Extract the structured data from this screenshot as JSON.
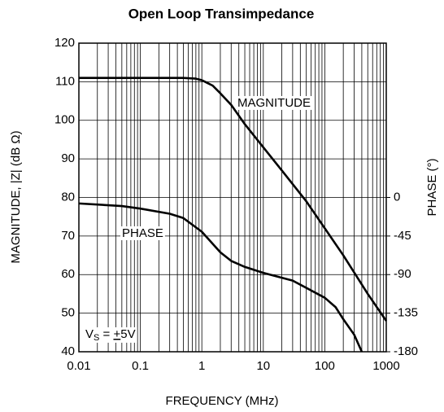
{
  "chart_data": {
    "type": "line",
    "title": "Open Loop Transimpedance",
    "x_label": "FREQUENCY (MHz)",
    "y_label": "MAGNITUDE, |Z| (dB Ω)",
    "y2_label": "PHASE (°)",
    "x_scale": "log",
    "grid": true,
    "xlim": [
      0.01,
      1000
    ],
    "xticks": [
      0.01,
      0.1,
      1,
      10,
      100,
      1000
    ],
    "ylim": [
      40,
      120
    ],
    "yticks": [
      40,
      50,
      60,
      70,
      80,
      90,
      100,
      110,
      120
    ],
    "y2lim": [
      -180,
      180
    ],
    "y2ticks": [
      -180,
      -135,
      -90,
      -45,
      0
    ],
    "series": [
      {
        "name": "MAGNITUDE",
        "color": "#000000",
        "x": [
          0.01,
          0.1,
          0.5,
          0.8,
          1,
          1.5,
          2,
          3,
          5,
          10,
          20,
          50,
          100,
          200,
          500,
          1000
        ],
        "values": [
          111,
          111,
          111,
          110.8,
          110.4,
          109,
          107,
          104,
          99,
          93,
          87,
          79,
          72,
          65,
          55,
          48
        ]
      },
      {
        "name": "PHASE",
        "color": "#000000",
        "axis": "y2",
        "x": [
          0.01,
          0.05,
          0.1,
          0.3,
          0.5,
          1,
          2,
          3,
          5,
          10,
          30,
          100,
          150,
          200,
          300,
          400
        ],
        "values": [
          -7,
          -10,
          -13,
          -19,
          -24,
          -40,
          -64,
          -74,
          -81,
          -88,
          -97,
          -117,
          -128,
          -142,
          -160,
          -180
        ]
      }
    ],
    "annotation": {
      "main": "V",
      "subscript": "S",
      "middle": " = ",
      "underlined": "+",
      "tail": "5V"
    }
  }
}
